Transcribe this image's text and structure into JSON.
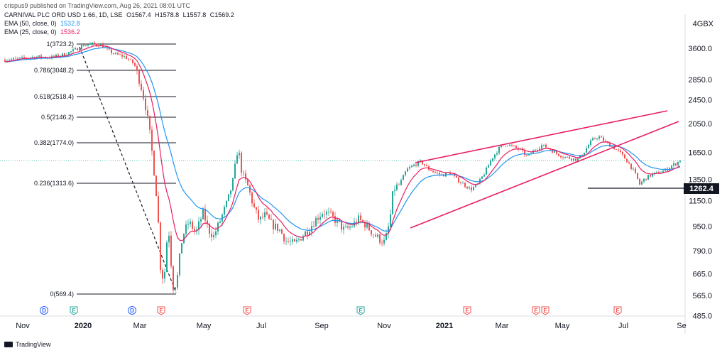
{
  "header": {
    "publisher": "crispus9 published on TradingView.com, Aug 26, 2021 08:01 UTC",
    "symbol": "CARNIVAL PLC ORD USD 1.66, 1D, LSE",
    "ohlc": {
      "O": "O1567.4",
      "H": "H1578.8",
      "L": "L1557.8",
      "C": "C1569.2"
    },
    "ema50": {
      "label": "EMA (50, close, 0)",
      "value": "1532.8",
      "color": "#2196f3"
    },
    "ema25": {
      "label": "EMA (25, close, 0)",
      "value": "1536.2",
      "color": "#e91e63"
    }
  },
  "footer": {
    "brand": "TradingView"
  },
  "chart_data": {
    "type": "candlestick",
    "currency_label": "GBX",
    "y_ticks": [
      485.0,
      565.0,
      665.0,
      790.0,
      950.0,
      1150.0,
      1350.0,
      1650.0,
      2050.0,
      2450.0,
      2850.0,
      3600.0
    ],
    "x_ticks": [
      "Nov",
      "2020",
      "Mar",
      "May",
      "Jul",
      "Sep",
      "Nov",
      "2021",
      "Mar",
      "May",
      "Jul",
      "Se"
    ],
    "price_marker": {
      "value": "1262.4"
    },
    "fibonacci": [
      {
        "label": "1(3723.2)",
        "value": 3723.2
      },
      {
        "label": "0.786(3048.2)",
        "value": 3048.2
      },
      {
        "label": "0.618(2518.4)",
        "value": 2518.4
      },
      {
        "label": "0.5(2146.2)",
        "value": 2146.2
      },
      {
        "label": "0.382(1774.0)",
        "value": 1774.0
      },
      {
        "label": "0.236(1313.6)",
        "value": 1313.6
      },
      {
        "label": "0(569.4)",
        "value": 569.4
      }
    ],
    "events": [
      {
        "letter": "D",
        "kind": "dividend"
      },
      {
        "letter": "E",
        "kind": "earnings-green"
      },
      {
        "letter": "D",
        "kind": "dividend"
      },
      {
        "letter": "E",
        "kind": "earnings"
      },
      {
        "letter": "E",
        "kind": "earnings"
      },
      {
        "letter": "E",
        "kind": "earnings-green"
      },
      {
        "letter": "E",
        "kind": "earnings"
      },
      {
        "letter": "E",
        "kind": "earnings"
      },
      {
        "letter": "E",
        "kind": "earnings"
      },
      {
        "letter": "E",
        "kind": "earnings"
      }
    ],
    "colors": {
      "up": "#26a69a",
      "down": "#ef5350",
      "ema50": "#2196f3",
      "ema25": "#e91e63",
      "trend": "#e91e63",
      "fib": "#131722"
    }
  }
}
